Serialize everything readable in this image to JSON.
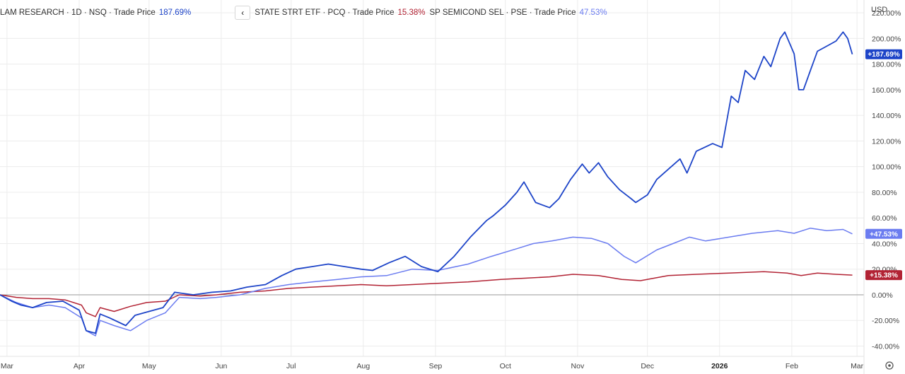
{
  "legend": {
    "collapse_icon": "chevron-left-icon",
    "items": [
      {
        "label": "LAM RESEARCH · 1D · NSQ · Trade Price",
        "value": "187.69%",
        "color": "#1d44c8"
      },
      {
        "label": "STATE STRT ETF · PCQ · Trade Price",
        "value": "15.38%",
        "color": "#b22334"
      },
      {
        "label": "SP SEMICOND SEL · PSE · Trade Price",
        "value": "47.53%",
        "color": "#6b7cf0"
      }
    ]
  },
  "currency": "USD",
  "settings_icon": "gear-icon",
  "chart_data": {
    "type": "line",
    "x_tick_labels": [
      "Mar",
      "Apr",
      "May",
      "Jun",
      "Jul",
      "Aug",
      "Sep",
      "Oct",
      "Nov",
      "Dec",
      "2026",
      "Feb",
      "Mar"
    ],
    "y_tick_labels": [
      "220.00%",
      "200.00%",
      "180.00%",
      "160.00%",
      "140.00%",
      "120.00%",
      "100.00%",
      "80.00%",
      "60.00%",
      "40.00%",
      "20.00%",
      "0.00%",
      "-20.00%",
      "-40.00%"
    ],
    "ylim": [
      -48,
      230
    ],
    "grid": true,
    "zero_line": true,
    "x_range": [
      "2025-02-26",
      "2026-03-04"
    ],
    "series": [
      {
        "name": "LAM RESEARCH",
        "color": "#1d44c8",
        "last_label": "+187.69%",
        "points": [
          [
            "2025-02-26",
            0
          ],
          [
            "2025-03-03",
            -5
          ],
          [
            "2025-03-07",
            -8
          ],
          [
            "2025-03-12",
            -10
          ],
          [
            "2025-03-18",
            -6
          ],
          [
            "2025-03-25",
            -5
          ],
          [
            "2025-04-01",
            -12
          ],
          [
            "2025-04-04",
            -28
          ],
          [
            "2025-04-08",
            -30
          ],
          [
            "2025-04-10",
            -15
          ],
          [
            "2025-04-14",
            -18
          ],
          [
            "2025-04-21",
            -24
          ],
          [
            "2025-04-25",
            -16
          ],
          [
            "2025-05-01",
            -13
          ],
          [
            "2025-05-07",
            -10
          ],
          [
            "2025-05-12",
            2
          ],
          [
            "2025-05-20",
            0
          ],
          [
            "2025-05-28",
            2
          ],
          [
            "2025-06-05",
            3
          ],
          [
            "2025-06-12",
            6
          ],
          [
            "2025-06-20",
            8
          ],
          [
            "2025-06-27",
            15
          ],
          [
            "2025-07-03",
            20
          ],
          [
            "2025-07-10",
            22
          ],
          [
            "2025-07-17",
            24
          ],
          [
            "2025-07-24",
            22
          ],
          [
            "2025-07-31",
            20
          ],
          [
            "2025-08-05",
            19
          ],
          [
            "2025-08-12",
            25
          ],
          [
            "2025-08-19",
            30
          ],
          [
            "2025-08-26",
            22
          ],
          [
            "2025-09-02",
            18
          ],
          [
            "2025-09-09",
            30
          ],
          [
            "2025-09-16",
            45
          ],
          [
            "2025-09-23",
            58
          ],
          [
            "2025-09-26",
            62
          ],
          [
            "2025-10-01",
            70
          ],
          [
            "2025-10-06",
            80
          ],
          [
            "2025-10-09",
            88
          ],
          [
            "2025-10-14",
            72
          ],
          [
            "2025-10-20",
            68
          ],
          [
            "2025-10-24",
            75
          ],
          [
            "2025-10-29",
            90
          ],
          [
            "2025-11-03",
            102
          ],
          [
            "2025-11-06",
            95
          ],
          [
            "2025-11-10",
            103
          ],
          [
            "2025-11-14",
            92
          ],
          [
            "2025-11-19",
            82
          ],
          [
            "2025-11-24",
            75
          ],
          [
            "2025-11-26",
            72
          ],
          [
            "2025-12-01",
            78
          ],
          [
            "2025-12-05",
            90
          ],
          [
            "2025-12-10",
            98
          ],
          [
            "2025-12-15",
            106
          ],
          [
            "2025-12-18",
            95
          ],
          [
            "2025-12-22",
            112
          ],
          [
            "2025-12-29",
            118
          ],
          [
            "2026-01-02",
            115
          ],
          [
            "2026-01-06",
            155
          ],
          [
            "2026-01-09",
            150
          ],
          [
            "2026-01-12",
            175
          ],
          [
            "2026-01-16",
            168
          ],
          [
            "2026-01-20",
            186
          ],
          [
            "2026-01-23",
            178
          ],
          [
            "2026-01-27",
            200
          ],
          [
            "2026-01-29",
            205
          ],
          [
            "2026-02-02",
            188
          ],
          [
            "2026-02-04",
            160
          ],
          [
            "2026-02-06",
            160
          ],
          [
            "2026-02-09",
            175
          ],
          [
            "2026-02-12",
            190
          ],
          [
            "2026-02-17",
            195
          ],
          [
            "2026-02-20",
            198
          ],
          [
            "2026-02-23",
            205
          ],
          [
            "2026-02-25",
            200
          ],
          [
            "2026-02-27",
            187.69
          ]
        ]
      },
      {
        "name": "STATE STRT ETF",
        "color": "#b22334",
        "last_label": "+15.38%",
        "points": [
          [
            "2025-02-26",
            0
          ],
          [
            "2025-03-05",
            -2
          ],
          [
            "2025-03-12",
            -3
          ],
          [
            "2025-03-19",
            -3
          ],
          [
            "2025-03-26",
            -4
          ],
          [
            "2025-04-02",
            -8
          ],
          [
            "2025-04-04",
            -14
          ],
          [
            "2025-04-08",
            -17
          ],
          [
            "2025-04-10",
            -10
          ],
          [
            "2025-04-16",
            -13
          ],
          [
            "2025-04-23",
            -9
          ],
          [
            "2025-04-30",
            -6
          ],
          [
            "2025-05-08",
            -5
          ],
          [
            "2025-05-14",
            0
          ],
          [
            "2025-05-23",
            -1
          ],
          [
            "2025-05-30",
            0
          ],
          [
            "2025-06-09",
            2
          ],
          [
            "2025-06-20",
            3
          ],
          [
            "2025-06-30",
            5
          ],
          [
            "2025-07-10",
            6
          ],
          [
            "2025-07-21",
            7
          ],
          [
            "2025-07-31",
            8
          ],
          [
            "2025-08-11",
            7
          ],
          [
            "2025-08-22",
            8
          ],
          [
            "2025-09-02",
            9
          ],
          [
            "2025-09-15",
            10
          ],
          [
            "2025-09-29",
            12
          ],
          [
            "2025-10-10",
            13
          ],
          [
            "2025-10-20",
            14
          ],
          [
            "2025-10-30",
            16
          ],
          [
            "2025-11-10",
            15
          ],
          [
            "2025-11-20",
            12
          ],
          [
            "2025-11-28",
            11
          ],
          [
            "2025-12-10",
            15
          ],
          [
            "2025-12-22",
            16
          ],
          [
            "2026-01-05",
            17
          ],
          [
            "2026-01-20",
            18
          ],
          [
            "2026-01-30",
            17
          ],
          [
            "2026-02-05",
            15
          ],
          [
            "2026-02-12",
            17
          ],
          [
            "2026-02-20",
            16
          ],
          [
            "2026-02-27",
            15.38
          ]
        ]
      },
      {
        "name": "SP SEMICOND SEL",
        "color": "#6b7cf0",
        "last_label": "+47.53%",
        "points": [
          [
            "2025-02-26",
            0
          ],
          [
            "2025-03-05",
            -6
          ],
          [
            "2025-03-12",
            -10
          ],
          [
            "2025-03-19",
            -8
          ],
          [
            "2025-03-26",
            -10
          ],
          [
            "2025-04-02",
            -18
          ],
          [
            "2025-04-04",
            -28
          ],
          [
            "2025-04-08",
            -32
          ],
          [
            "2025-04-10",
            -20
          ],
          [
            "2025-04-16",
            -24
          ],
          [
            "2025-04-23",
            -28
          ],
          [
            "2025-04-30",
            -20
          ],
          [
            "2025-05-08",
            -14
          ],
          [
            "2025-05-14",
            -2
          ],
          [
            "2025-05-23",
            -3
          ],
          [
            "2025-05-30",
            -2
          ],
          [
            "2025-06-09",
            0
          ],
          [
            "2025-06-20",
            5
          ],
          [
            "2025-06-30",
            8
          ],
          [
            "2025-07-10",
            10
          ],
          [
            "2025-07-21",
            12
          ],
          [
            "2025-07-31",
            14
          ],
          [
            "2025-08-11",
            15
          ],
          [
            "2025-08-22",
            20
          ],
          [
            "2025-09-02",
            19
          ],
          [
            "2025-09-15",
            24
          ],
          [
            "2025-09-25",
            30
          ],
          [
            "2025-10-06",
            36
          ],
          [
            "2025-10-13",
            40
          ],
          [
            "2025-10-21",
            42
          ],
          [
            "2025-10-30",
            45
          ],
          [
            "2025-11-07",
            44
          ],
          [
            "2025-11-14",
            40
          ],
          [
            "2025-11-21",
            30
          ],
          [
            "2025-11-26",
            25
          ],
          [
            "2025-12-05",
            35
          ],
          [
            "2025-12-12",
            40
          ],
          [
            "2025-12-19",
            45
          ],
          [
            "2025-12-26",
            42
          ],
          [
            "2026-01-05",
            45
          ],
          [
            "2026-01-15",
            48
          ],
          [
            "2026-01-26",
            50
          ],
          [
            "2026-02-02",
            48
          ],
          [
            "2026-02-09",
            52
          ],
          [
            "2026-02-16",
            50
          ],
          [
            "2026-02-23",
            51
          ],
          [
            "2026-02-27",
            47.53
          ]
        ]
      }
    ]
  }
}
